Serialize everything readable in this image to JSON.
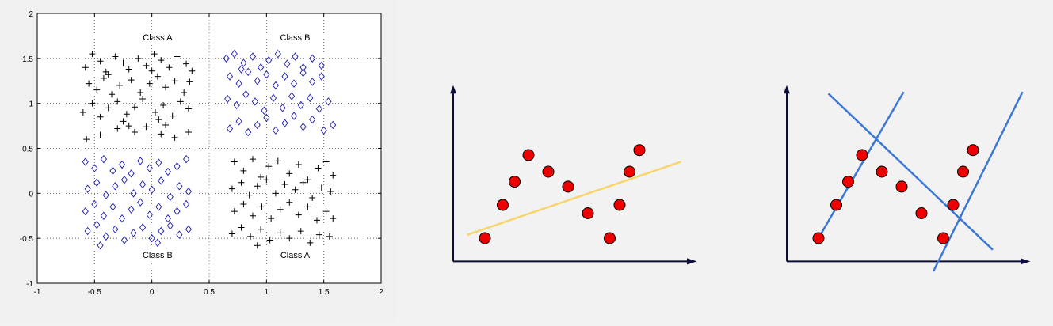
{
  "chart_data": [
    {
      "type": "scatter",
      "xlim": [
        -1,
        2
      ],
      "ylim": [
        -1,
        2
      ],
      "xticks": [
        "-1",
        "-0.5",
        "0",
        "0.5",
        "1",
        "1.5",
        "2"
      ],
      "yticks": [
        "-1",
        "-0.5",
        "0",
        "0.5",
        "1",
        "1.5",
        "2"
      ],
      "grid": true,
      "annotations": [
        {
          "text": "Class A",
          "x": 0.05,
          "y": 1.7
        },
        {
          "text": "Class B",
          "x": 1.25,
          "y": 1.7
        },
        {
          "text": "Class B",
          "x": 0.05,
          "y": -0.72
        },
        {
          "text": "Class A",
          "x": 1.25,
          "y": -0.72
        }
      ],
      "series": [
        {
          "marker": "plus",
          "color": "#000000",
          "points": [
            [
              -0.58,
              1.4
            ],
            [
              -0.52,
              1.55
            ],
            [
              -0.45,
              1.47
            ],
            [
              -0.4,
              1.35
            ],
            [
              -0.32,
              1.52
            ],
            [
              -0.25,
              1.45
            ],
            [
              -0.2,
              1.38
            ],
            [
              -0.12,
              1.5
            ],
            [
              -0.05,
              1.42
            ],
            [
              0.02,
              1.55
            ],
            [
              0.08,
              1.48
            ],
            [
              0.15,
              1.4
            ],
            [
              0.22,
              1.52
            ],
            [
              0.3,
              1.44
            ],
            [
              0.35,
              1.36
            ],
            [
              -0.55,
              1.22
            ],
            [
              -0.48,
              1.15
            ],
            [
              -0.42,
              1.28
            ],
            [
              -0.35,
              1.1
            ],
            [
              -0.28,
              1.2
            ],
            [
              -0.18,
              1.26
            ],
            [
              -0.1,
              1.12
            ],
            [
              -0.02,
              1.22
            ],
            [
              0.05,
              1.3
            ],
            [
              0.12,
              1.18
            ],
            [
              0.2,
              1.25
            ],
            [
              0.28,
              1.12
            ],
            [
              0.33,
              1.24
            ],
            [
              -0.38,
              1.32
            ],
            [
              0.0,
              1.36
            ],
            [
              -0.6,
              0.9
            ],
            [
              -0.52,
              1.0
            ],
            [
              -0.45,
              0.85
            ],
            [
              -0.38,
              0.95
            ],
            [
              -0.3,
              1.02
            ],
            [
              -0.22,
              0.88
            ],
            [
              -0.15,
              0.96
            ],
            [
              -0.08,
              1.05
            ],
            [
              0.03,
              0.9
            ],
            [
              0.1,
              0.98
            ],
            [
              0.18,
              0.86
            ],
            [
              0.25,
              1.02
            ],
            [
              0.32,
              0.94
            ],
            [
              -0.25,
              0.8
            ],
            [
              0.06,
              0.82
            ],
            [
              -0.57,
              0.6
            ],
            [
              -0.45,
              0.65
            ],
            [
              -0.3,
              0.72
            ],
            [
              -0.15,
              0.68
            ],
            [
              -0.05,
              0.74
            ],
            [
              0.08,
              0.66
            ],
            [
              0.2,
              0.62
            ],
            [
              0.32,
              0.68
            ],
            [
              0.12,
              0.76
            ],
            [
              -0.2,
              0.75
            ],
            [
              0.72,
              0.35
            ],
            [
              0.8,
              0.25
            ],
            [
              0.88,
              0.38
            ],
            [
              0.95,
              0.18
            ],
            [
              1.02,
              0.3
            ],
            [
              1.1,
              0.36
            ],
            [
              1.2,
              0.22
            ],
            [
              1.28,
              0.32
            ],
            [
              1.36,
              0.15
            ],
            [
              1.45,
              0.28
            ],
            [
              1.52,
              0.35
            ],
            [
              1.58,
              0.2
            ],
            [
              0.7,
              0.05
            ],
            [
              0.78,
              0.12
            ],
            [
              0.85,
              -0.02
            ],
            [
              0.92,
              0.08
            ],
            [
              1.0,
              0.15
            ],
            [
              1.08,
              0.0
            ],
            [
              1.16,
              0.1
            ],
            [
              1.25,
              0.04
            ],
            [
              1.32,
              0.12
            ],
            [
              1.4,
              -0.05
            ],
            [
              1.48,
              0.06
            ],
            [
              1.56,
              0.02
            ],
            [
              0.72,
              -0.2
            ],
            [
              0.8,
              -0.12
            ],
            [
              0.88,
              -0.25
            ],
            [
              0.96,
              -0.15
            ],
            [
              1.04,
              -0.28
            ],
            [
              1.12,
              -0.18
            ],
            [
              1.2,
              -0.1
            ],
            [
              1.28,
              -0.24
            ],
            [
              1.36,
              -0.15
            ],
            [
              1.44,
              -0.3
            ],
            [
              1.52,
              -0.2
            ],
            [
              1.58,
              -0.28
            ],
            [
              0.7,
              -0.45
            ],
            [
              0.78,
              -0.38
            ],
            [
              0.86,
              -0.48
            ],
            [
              0.95,
              -0.4
            ],
            [
              1.03,
              -0.52
            ],
            [
              1.12,
              -0.44
            ],
            [
              1.2,
              -0.5
            ],
            [
              1.3,
              -0.42
            ],
            [
              1.38,
              -0.55
            ],
            [
              1.46,
              -0.46
            ],
            [
              1.55,
              -0.48
            ],
            [
              0.92,
              -0.58
            ]
          ]
        },
        {
          "marker": "diamond",
          "color": "#1a1ab0",
          "points": [
            [
              0.65,
              1.5
            ],
            [
              0.72,
              1.55
            ],
            [
              0.8,
              1.45
            ],
            [
              0.88,
              1.52
            ],
            [
              0.95,
              1.4
            ],
            [
              1.02,
              1.48
            ],
            [
              1.1,
              1.55
            ],
            [
              1.18,
              1.44
            ],
            [
              1.25,
              1.52
            ],
            [
              1.32,
              1.4
            ],
            [
              1.4,
              1.5
            ],
            [
              1.48,
              1.42
            ],
            [
              0.68,
              1.3
            ],
            [
              0.76,
              1.22
            ],
            [
              0.84,
              1.35
            ],
            [
              0.92,
              1.25
            ],
            [
              1.0,
              1.32
            ],
            [
              1.08,
              1.2
            ],
            [
              1.16,
              1.3
            ],
            [
              1.24,
              1.22
            ],
            [
              1.32,
              1.34
            ],
            [
              1.4,
              1.24
            ],
            [
              1.48,
              1.3
            ],
            [
              0.78,
              1.38
            ],
            [
              0.66,
              1.05
            ],
            [
              0.74,
              0.98
            ],
            [
              0.82,
              1.1
            ],
            [
              0.9,
              1.02
            ],
            [
              0.98,
              0.92
            ],
            [
              1.06,
              1.06
            ],
            [
              1.14,
              0.95
            ],
            [
              1.22,
              1.08
            ],
            [
              1.3,
              0.98
            ],
            [
              1.38,
              1.06
            ],
            [
              1.46,
              0.94
            ],
            [
              1.54,
              1.02
            ],
            [
              0.68,
              0.72
            ],
            [
              0.76,
              0.8
            ],
            [
              0.84,
              0.68
            ],
            [
              0.92,
              0.76
            ],
            [
              1.0,
              0.84
            ],
            [
              1.08,
              0.7
            ],
            [
              1.16,
              0.78
            ],
            [
              1.24,
              0.86
            ],
            [
              1.32,
              0.74
            ],
            [
              1.4,
              0.82
            ],
            [
              1.5,
              0.7
            ],
            [
              1.58,
              0.76
            ],
            [
              -0.58,
              0.35
            ],
            [
              -0.5,
              0.28
            ],
            [
              -0.42,
              0.38
            ],
            [
              -0.34,
              0.25
            ],
            [
              -0.26,
              0.32
            ],
            [
              -0.18,
              0.22
            ],
            [
              -0.1,
              0.36
            ],
            [
              -0.02,
              0.28
            ],
            [
              0.06,
              0.34
            ],
            [
              0.14,
              0.24
            ],
            [
              0.22,
              0.3
            ],
            [
              0.3,
              0.38
            ],
            [
              -0.56,
              0.05
            ],
            [
              -0.48,
              0.12
            ],
            [
              -0.4,
              -0.02
            ],
            [
              -0.32,
              0.08
            ],
            [
              -0.24,
              0.15
            ],
            [
              -0.16,
              0.0
            ],
            [
              -0.08,
              0.1
            ],
            [
              0.0,
              0.04
            ],
            [
              0.08,
              0.14
            ],
            [
              0.16,
              -0.04
            ],
            [
              0.24,
              0.08
            ],
            [
              0.32,
              0.02
            ],
            [
              -0.58,
              -0.2
            ],
            [
              -0.5,
              -0.12
            ],
            [
              -0.42,
              -0.25
            ],
            [
              -0.34,
              -0.15
            ],
            [
              -0.26,
              -0.28
            ],
            [
              -0.18,
              -0.18
            ],
            [
              -0.1,
              -0.1
            ],
            [
              -0.02,
              -0.24
            ],
            [
              0.06,
              -0.15
            ],
            [
              0.14,
              -0.28
            ],
            [
              0.22,
              -0.2
            ],
            [
              0.3,
              -0.12
            ],
            [
              -0.56,
              -0.42
            ],
            [
              -0.48,
              -0.35
            ],
            [
              -0.4,
              -0.48
            ],
            [
              -0.32,
              -0.4
            ],
            [
              -0.24,
              -0.52
            ],
            [
              -0.16,
              -0.44
            ],
            [
              -0.08,
              -0.38
            ],
            [
              0.0,
              -0.5
            ],
            [
              0.08,
              -0.42
            ],
            [
              0.16,
              -0.36
            ],
            [
              0.24,
              -0.46
            ],
            [
              0.32,
              -0.4
            ],
            [
              -0.45,
              -0.58
            ],
            [
              0.05,
              -0.55
            ]
          ]
        }
      ]
    },
    {
      "type": "scatter",
      "points": [
        [
          1.0,
          1.0
        ],
        [
          1.9,
          3.0
        ],
        [
          2.5,
          4.4
        ],
        [
          3.2,
          6.0
        ],
        [
          4.2,
          5.0
        ],
        [
          5.2,
          4.1
        ],
        [
          6.2,
          2.5
        ],
        [
          7.3,
          1.0
        ],
        [
          7.8,
          3.0
        ],
        [
          8.3,
          5.0
        ],
        [
          8.8,
          6.3
        ]
      ],
      "fit_lines": [
        {
          "x1": 0.1,
          "y1": 1.2,
          "x2": 10.9,
          "y2": 5.6,
          "color": "#f7d56b"
        }
      ],
      "colors": {
        "points": "#ee0000",
        "axes": "#0d0d3a"
      }
    },
    {
      "type": "scatter",
      "points": [
        [
          1.0,
          1.0
        ],
        [
          1.9,
          3.0
        ],
        [
          2.5,
          4.4
        ],
        [
          3.2,
          6.0
        ],
        [
          4.2,
          5.0
        ],
        [
          5.2,
          4.1
        ],
        [
          6.2,
          2.5
        ],
        [
          7.3,
          1.0
        ],
        [
          7.8,
          3.0
        ],
        [
          8.3,
          5.0
        ],
        [
          8.8,
          6.3
        ]
      ],
      "fit_lines": [
        {
          "x1": 1.0,
          "y1": 1.0,
          "x2": 5.3,
          "y2": 9.8,
          "color": "#3d77d4"
        },
        {
          "x1": 1.5,
          "y1": 9.7,
          "x2": 9.8,
          "y2": 0.3,
          "color": "#3d77d4"
        },
        {
          "x1": 6.8,
          "y1": -1.0,
          "x2": 11.3,
          "y2": 9.8,
          "color": "#3d77d4"
        }
      ],
      "colors": {
        "points": "#ee0000",
        "axes": "#0d0d3a"
      }
    }
  ]
}
